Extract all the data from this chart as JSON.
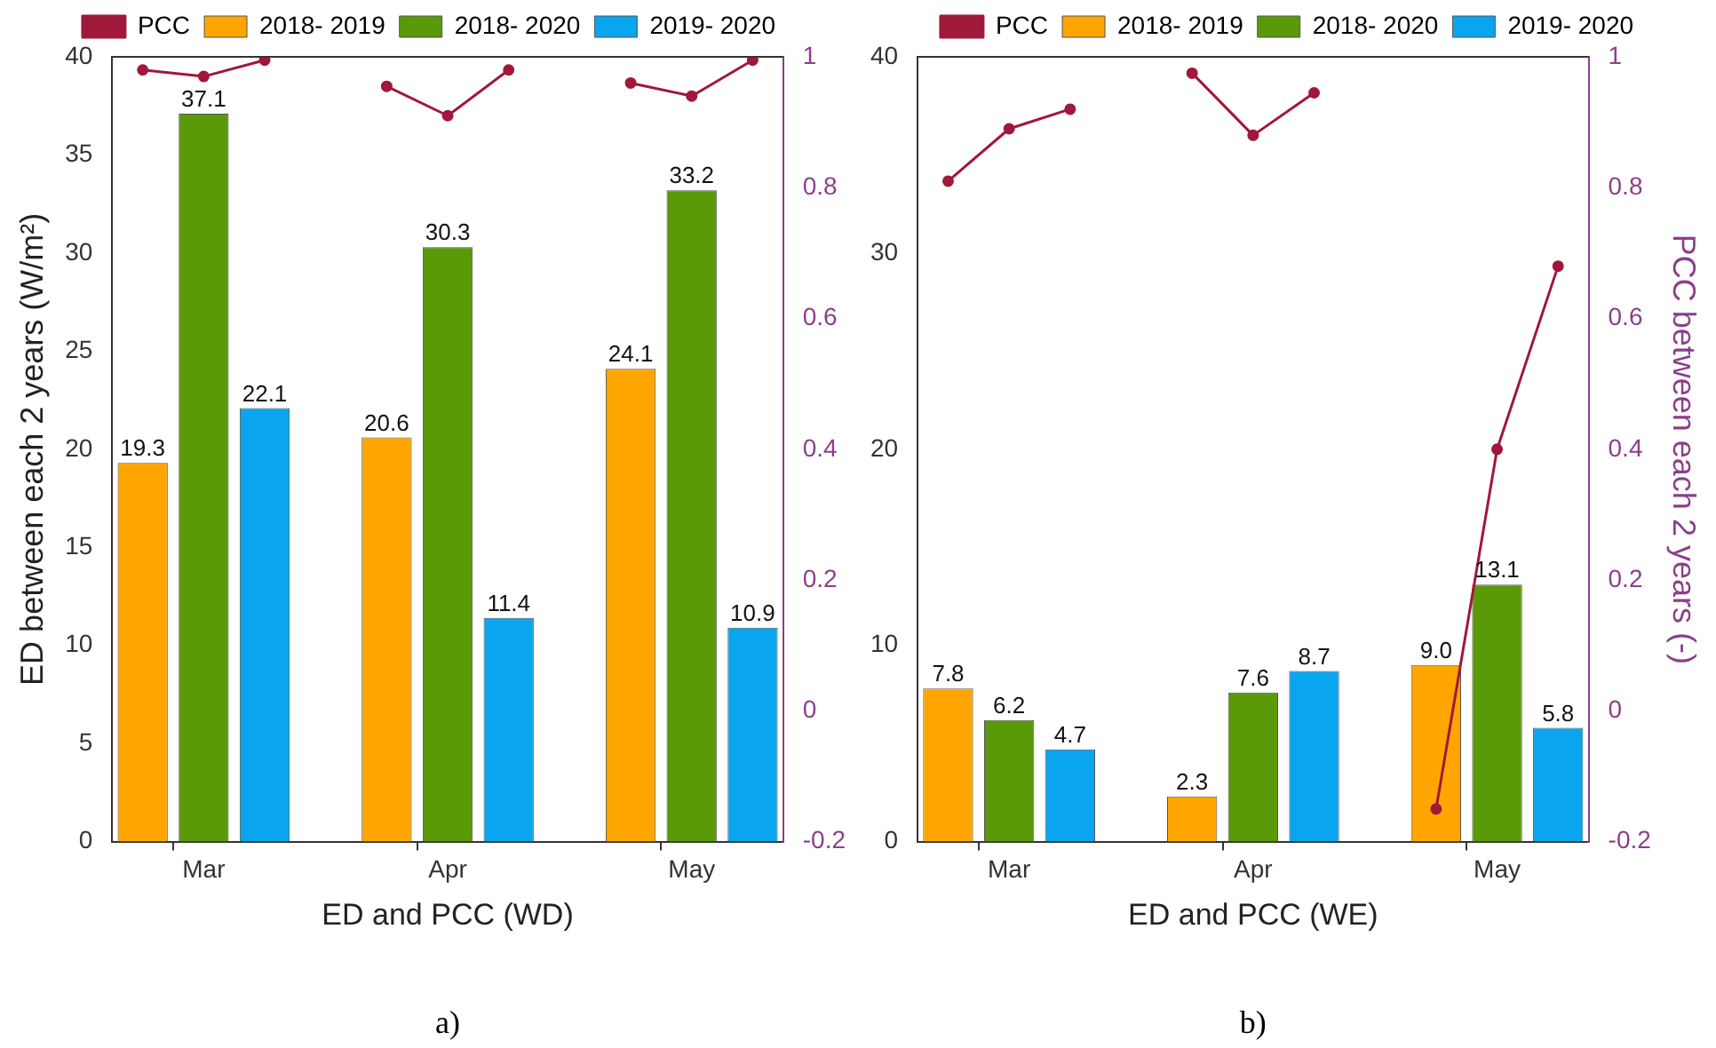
{
  "chart_data": [
    {
      "type": "bar",
      "xlabel": "ED and PCC (WD)",
      "ylabel": "ED between each 2 years (W/m²)",
      "categories": [
        null,
        "Mar",
        null,
        null,
        null,
        "Apr",
        null,
        null,
        null,
        "May",
        null
      ],
      "ylim": [
        0,
        40
      ],
      "yticks": [
        0,
        5,
        10,
        15,
        20,
        25,
        30,
        35,
        40
      ],
      "y2lim": [
        -0.2,
        1
      ],
      "y2ticks": [
        -0.2,
        0,
        0.2,
        0.4,
        0.6,
        0.8,
        1
      ],
      "legend": "top",
      "annotations": [
        "a)"
      ],
      "series": [
        {
          "name": "2018- 2019",
          "color": "#ffa500",
          "values": [
            19.3,
            null,
            null,
            null,
            20.6,
            null,
            null,
            null,
            24.1,
            null,
            null
          ],
          "value_labels": [
            "19.3",
            null,
            null,
            null,
            "20.6",
            null,
            null,
            null,
            "24.1",
            null,
            null
          ]
        },
        {
          "name": "2018- 2020",
          "color": "#5a9a08",
          "values": [
            null,
            37.1,
            null,
            null,
            null,
            30.3,
            null,
            null,
            null,
            33.2,
            null
          ],
          "value_labels": [
            null,
            "37.1",
            null,
            null,
            null,
            "30.3",
            null,
            null,
            null,
            "33.2",
            null
          ]
        },
        {
          "name": "2019- 2020",
          "color": "#0aa5ef",
          "values": [
            null,
            null,
            22.1,
            null,
            null,
            null,
            11.4,
            null,
            null,
            null,
            10.9
          ],
          "value_labels": [
            null,
            null,
            "22.1",
            null,
            null,
            null,
            "11.4",
            null,
            null,
            null,
            "10.9"
          ]
        },
        {
          "name": "PCC",
          "type": "line",
          "axis": "y2",
          "color": "#a0183a",
          "marker": "circle",
          "values": [
            0.98,
            0.97,
            0.995,
            null,
            0.955,
            0.91,
            0.98,
            null,
            0.96,
            0.94,
            0.995
          ]
        }
      ]
    },
    {
      "type": "bar",
      "xlabel": "ED and PCC (WE)",
      "y2label": "PCC between each 2 years (-)",
      "categories": [
        null,
        "Mar",
        null,
        null,
        null,
        "Apr",
        null,
        null,
        null,
        "May",
        null
      ],
      "ylim": [
        0,
        40
      ],
      "yticks": [
        0,
        10,
        20,
        30,
        40
      ],
      "y2lim": [
        -0.2,
        1
      ],
      "y2ticks": [
        -0.2,
        0,
        0.2,
        0.4,
        0.6,
        0.8,
        1
      ],
      "legend": "top",
      "annotations": [
        "b)"
      ],
      "series": [
        {
          "name": "2018- 2019",
          "color": "#ffa500",
          "values": [
            7.8,
            null,
            null,
            null,
            2.3,
            null,
            null,
            null,
            9.0,
            null,
            null
          ],
          "value_labels": [
            "7.8",
            null,
            null,
            null,
            "2.3",
            null,
            null,
            null,
            "9.0",
            null,
            null
          ]
        },
        {
          "name": "2018- 2020",
          "color": "#5a9a08",
          "values": [
            null,
            6.2,
            null,
            null,
            null,
            7.6,
            null,
            null,
            null,
            13.1,
            null
          ],
          "value_labels": [
            null,
            "6.2",
            null,
            null,
            null,
            "7.6",
            null,
            null,
            null,
            "13.1",
            null
          ]
        },
        {
          "name": "2019- 2020",
          "color": "#0aa5ef",
          "values": [
            null,
            null,
            4.7,
            null,
            null,
            null,
            8.7,
            null,
            null,
            null,
            5.8
          ],
          "value_labels": [
            null,
            null,
            "4.7",
            null,
            null,
            null,
            "8.7",
            null,
            null,
            null,
            "5.8"
          ]
        },
        {
          "name": "PCC",
          "type": "line",
          "axis": "y2",
          "color": "#a0183a",
          "marker": "circle",
          "values": [
            0.81,
            0.89,
            0.92,
            null,
            0.975,
            0.88,
            0.945,
            null,
            -0.15,
            0.4,
            0.68
          ]
        }
      ]
    }
  ]
}
